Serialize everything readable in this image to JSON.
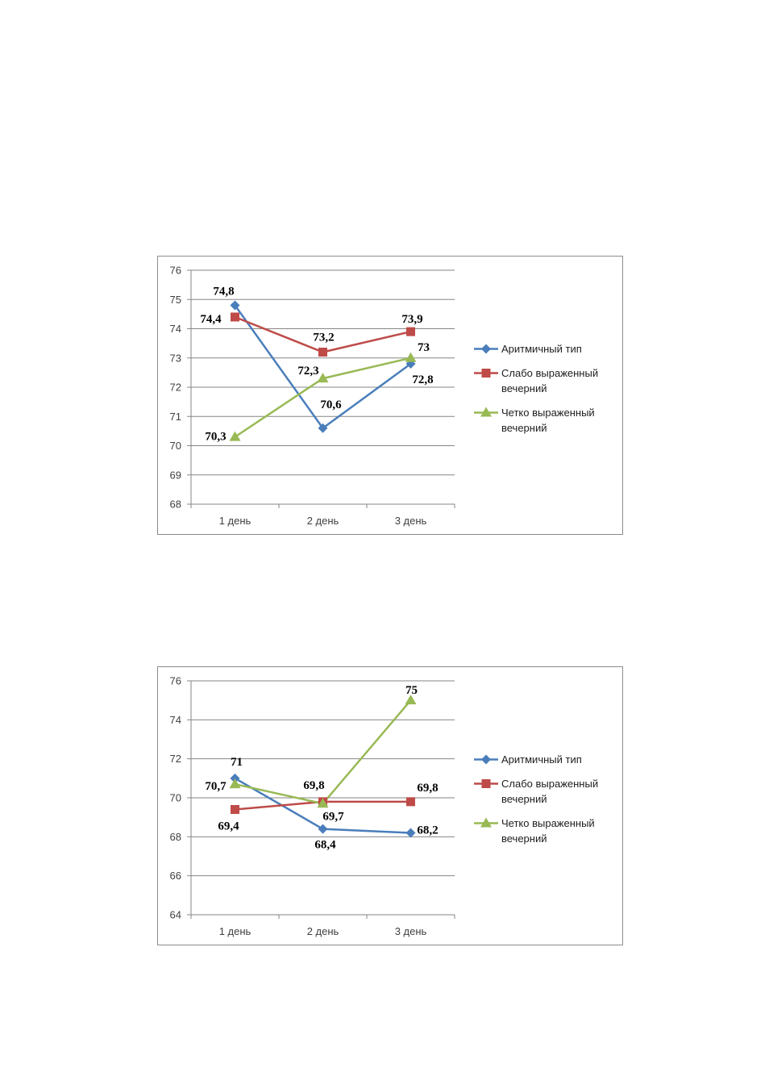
{
  "chart_data": [
    {
      "type": "line",
      "categories": [
        "1 день",
        "2 день",
        "3 день"
      ],
      "ylim": [
        68,
        76
      ],
      "ystep": 1,
      "yticks": [
        "68",
        "69",
        "70",
        "71",
        "72",
        "73",
        "74",
        "75",
        "76"
      ],
      "grid": true,
      "legend_position": "right",
      "series": [
        {
          "name": "Аритмичный тип",
          "color": "#4a7ebb",
          "marker": "diamond",
          "values": [
            74.8,
            70.6,
            72.8
          ],
          "labels": [
            "74,8",
            "70,6",
            "72,8"
          ]
        },
        {
          "name": "Слабо выраженный вечерний",
          "color": "#be4b48",
          "marker": "square",
          "values": [
            74.4,
            73.2,
            73.9
          ],
          "labels": [
            "74,4",
            "73,2",
            "73,9"
          ]
        },
        {
          "name": "Четко выраженный вечерний",
          "color": "#98b954",
          "marker": "triangle",
          "values": [
            70.3,
            72.3,
            73
          ],
          "labels": [
            "70,3",
            "72,3",
            "73"
          ]
        }
      ]
    },
    {
      "type": "line",
      "categories": [
        "1 день",
        "2 день",
        "3 день"
      ],
      "ylim": [
        64,
        76
      ],
      "ystep": 2,
      "yticks": [
        "64",
        "66",
        "68",
        "70",
        "72",
        "74",
        "76"
      ],
      "grid": true,
      "legend_position": "right",
      "series": [
        {
          "name": "Аритмичный тип",
          "color": "#4a7ebb",
          "marker": "diamond",
          "values": [
            71,
            68.4,
            68.2
          ],
          "labels": [
            "71",
            "68,4",
            "68,2"
          ]
        },
        {
          "name": "Слабо выраженный вечерний",
          "color": "#be4b48",
          "marker": "square",
          "values": [
            69.4,
            69.8,
            69.8
          ],
          "labels": [
            "69,4",
            "69,8",
            "69,8"
          ]
        },
        {
          "name": "Четко выраженный вечерний",
          "color": "#98b954",
          "marker": "triangle",
          "values": [
            70.7,
            69.7,
            75
          ],
          "labels": [
            "70,7",
            "69,7",
            "75"
          ]
        }
      ]
    }
  ]
}
